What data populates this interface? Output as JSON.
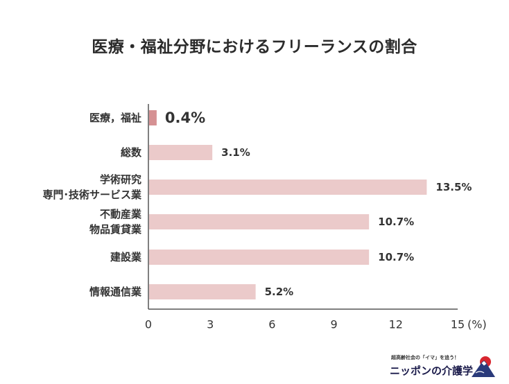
{
  "chart_data": {
    "type": "bar",
    "orientation": "horizontal",
    "title": "医療・福祉分野におけるフリーランスの割合",
    "categories": [
      [
        "医療，福祉"
      ],
      [
        "総数"
      ],
      [
        "学術研究",
        "専門･技術サービス業"
      ],
      [
        "不動産業",
        "物品賃貸業"
      ],
      [
        "建設業"
      ],
      [
        "情報通信業"
      ]
    ],
    "values": [
      0.4,
      3.1,
      13.5,
      10.7,
      10.7,
      5.2
    ],
    "value_labels": [
      "0.4%",
      "3.1%",
      "13.5%",
      "10.7%",
      "10.7%",
      "5.2%"
    ],
    "highlight_index": 0,
    "xlim": [
      0,
      15
    ],
    "xticks": [
      "0",
      "3",
      "6",
      "9",
      "12",
      "15"
    ],
    "x_unit": "(%)",
    "grid": false,
    "colors": {
      "highlight": "#d59193",
      "bar": "#ebcaca",
      "axis": "#555555"
    }
  },
  "logo": {
    "tagline": "超高齢社会の「イマ」を追う！",
    "name": "ニッポンの介護学",
    "icon": "mount-fuji-sunrise-icon"
  }
}
